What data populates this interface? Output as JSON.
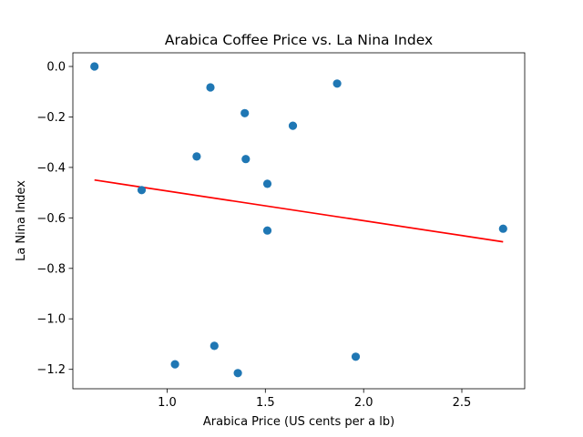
{
  "chart_data": {
    "type": "scatter",
    "title": "Arabica Coffee Price vs. La Nina Index",
    "xlabel": "Arabica Price (US cents per a lb)",
    "ylabel": "La Nina Index",
    "xlim": [
      0.52,
      2.82
    ],
    "ylim": [
      -1.277,
      0.054
    ],
    "xticks": [
      1.0,
      1.5,
      2.0,
      2.5
    ],
    "xtick_labels": [
      "1.0",
      "1.5",
      "2.0",
      "2.5"
    ],
    "yticks": [
      0.0,
      -0.2,
      -0.4,
      -0.6,
      -0.8,
      -1.0,
      -1.2
    ],
    "ytick_labels": [
      "0.0",
      "−0.2",
      "−0.4",
      "−0.6",
      "−0.8",
      "−1.0",
      "−1.2"
    ],
    "grid": false,
    "series": [
      {
        "points": [
          {
            "x": 0.63,
            "y": 0.0
          },
          {
            "x": 0.87,
            "y": -0.49
          },
          {
            "x": 1.04,
            "y": -1.18
          },
          {
            "x": 1.15,
            "y": -0.357
          },
          {
            "x": 1.22,
            "y": -0.083
          },
          {
            "x": 1.24,
            "y": -1.107
          },
          {
            "x": 1.36,
            "y": -1.215
          },
          {
            "x": 1.395,
            "y": -0.185
          },
          {
            "x": 1.4,
            "y": -0.367
          },
          {
            "x": 1.51,
            "y": -0.465
          },
          {
            "x": 1.51,
            "y": -0.65
          },
          {
            "x": 1.64,
            "y": -0.235
          },
          {
            "x": 1.865,
            "y": -0.068
          },
          {
            "x": 1.96,
            "y": -1.15
          },
          {
            "x": 2.71,
            "y": -0.643
          }
        ],
        "color": "#1f77b4"
      }
    ],
    "trendline": {
      "x": [
        0.63,
        2.71
      ],
      "y": [
        -0.45,
        -0.695
      ],
      "color": "#ff0000"
    }
  }
}
